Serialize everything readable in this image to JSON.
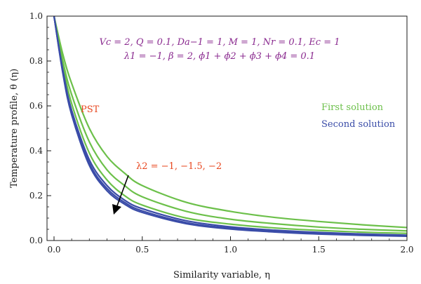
{
  "chart_data": {
    "type": "line",
    "xlabel": "Similarity variable, η",
    "ylabel": "Temperature profile, θ (η)",
    "xlim": [
      0,
      2.0
    ],
    "ylim": [
      0,
      1.0
    ],
    "x_ticks": [
      "0.0",
      "0.5",
      "1.0",
      "1.5",
      "2.0"
    ],
    "y_ticks": [
      "0.0",
      "0.2",
      "0.4",
      "0.6",
      "0.8",
      "1.0"
    ],
    "grid": false,
    "x": [
      0,
      0.05,
      0.1,
      0.2,
      0.3,
      0.4,
      0.5,
      0.75,
      1.0,
      1.25,
      1.5,
      1.75,
      2.0
    ],
    "series": [
      {
        "group": "First solution",
        "color": "#6cc04a",
        "values": [
          1.0,
          0.83,
          0.7,
          0.5,
          0.375,
          0.3,
          0.245,
          0.17,
          0.13,
          0.103,
          0.085,
          0.07,
          0.058
        ]
      },
      {
        "group": "First solution",
        "color": "#6cc04a",
        "values": [
          1.0,
          0.8,
          0.65,
          0.44,
          0.315,
          0.245,
          0.195,
          0.13,
          0.095,
          0.075,
          0.06,
          0.05,
          0.043
        ]
      },
      {
        "group": "First solution",
        "color": "#6cc04a",
        "values": [
          1.0,
          0.78,
          0.61,
          0.39,
          0.27,
          0.2,
          0.158,
          0.1,
          0.073,
          0.056,
          0.045,
          0.037,
          0.032
        ]
      },
      {
        "group": "Second solution",
        "color": "#3a4ca8",
        "values": [
          1.0,
          0.76,
          0.58,
          0.36,
          0.245,
          0.18,
          0.142,
          0.088,
          0.061,
          0.046,
          0.036,
          0.029,
          0.024
        ]
      },
      {
        "group": "Second solution",
        "color": "#3a4ca8",
        "values": [
          1.0,
          0.75,
          0.57,
          0.345,
          0.232,
          0.17,
          0.132,
          0.08,
          0.055,
          0.041,
          0.032,
          0.026,
          0.021
        ]
      },
      {
        "group": "Second solution",
        "color": "#3a4ca8",
        "values": [
          1.0,
          0.745,
          0.56,
          0.335,
          0.222,
          0.162,
          0.125,
          0.075,
          0.051,
          0.038,
          0.029,
          0.023,
          0.019
        ]
      }
    ],
    "legend": {
      "placement": "right",
      "first_label": "First solution",
      "first_color": "#6cc04a",
      "second_label": "Second solution",
      "second_color": "#3a4ca8"
    },
    "annotations": {
      "pst": "PST",
      "lambda2": "λ2 = −1, −1.5, −2",
      "params_line1": "Vc = 2, Q = 0.1, Da−1 = 1, M = 1, Nr = 0.1, Ec = 1",
      "params_line2": "λ1 = −1, β = 2, ϕ1 + ϕ2 + ϕ3 + ϕ4 = 0.1"
    },
    "colors": {
      "params": "#8a2a8f",
      "pst": "#e8461e",
      "lambda2": "#e8461e",
      "arrow": "#000000"
    }
  }
}
